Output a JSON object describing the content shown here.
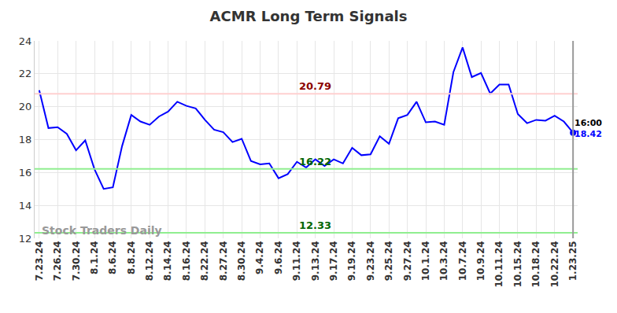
{
  "chart_data": {
    "type": "line",
    "title": "ACMR Long Term Signals",
    "categories": [
      "7.23.24",
      null,
      "7.26.24",
      null,
      "7.30.24",
      null,
      "8.1.24",
      null,
      "8.6.24",
      null,
      "8.8.24",
      null,
      "8.12.24",
      null,
      "8.14.24",
      null,
      "8.16.24",
      null,
      "8.22.24",
      null,
      "8.27.24",
      null,
      "8.30.24",
      null,
      "9.4.24",
      null,
      "9.6.24",
      null,
      "9.11.24",
      null,
      "9.13.24",
      null,
      "9.17.24",
      null,
      "9.19.24",
      null,
      "9.23.24",
      null,
      "9.25.24",
      null,
      "9.27.24",
      null,
      "10.1.24",
      null,
      "10.3.24",
      null,
      "10.7.24",
      null,
      "10.9.24",
      null,
      "10.11.24",
      null,
      "10.15.24",
      null,
      "10.18.24",
      null,
      "10.22.24",
      null,
      "1.23.25"
    ],
    "values": [
      21.0,
      18.7,
      18.75,
      18.35,
      17.35,
      17.95,
      16.2,
      15.0,
      15.1,
      17.6,
      19.5,
      19.1,
      18.9,
      19.4,
      19.7,
      20.3,
      20.05,
      19.9,
      19.2,
      18.6,
      18.45,
      17.85,
      18.05,
      16.7,
      16.5,
      16.55,
      15.65,
      15.9,
      16.65,
      16.3,
      16.8,
      16.4,
      16.8,
      16.55,
      17.5,
      17.05,
      17.1,
      18.2,
      17.75,
      19.3,
      19.5,
      20.3,
      19.05,
      19.1,
      18.9,
      22.1,
      23.6,
      21.8,
      22.05,
      20.8,
      21.35,
      21.35,
      19.55,
      19.0,
      19.2,
      19.15,
      19.45,
      19.1,
      18.42
    ],
    "color": "#0000ff",
    "ylim": [
      12,
      24
    ],
    "yticks": [
      12,
      14,
      16,
      18,
      20,
      22,
      24
    ],
    "grid": true,
    "reference_lines": [
      {
        "value": 20.79,
        "color": "#8b0000"
      },
      {
        "value": 16.22,
        "color": "#006400"
      },
      {
        "value": 12.33,
        "color": "#006400"
      }
    ],
    "last_label": "16:00",
    "watermark": "Stock Traders Daily"
  }
}
